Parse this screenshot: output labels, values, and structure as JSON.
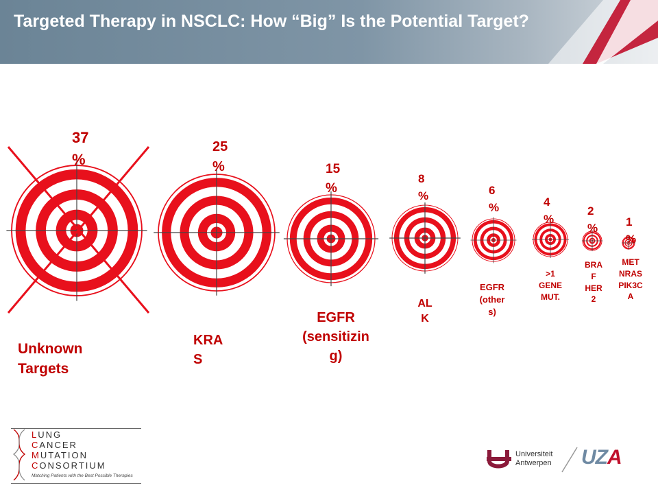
{
  "header": {
    "title": "Targeted Therapy in NSCLC: How “Big” Is the Potential Target?"
  },
  "colors": {
    "target_red": "#e8101c",
    "label_red": "#c00000",
    "header_blue": "#6b8496",
    "crimson": "#c0102b"
  },
  "targets": [
    {
      "pct": "37\n%",
      "label": "Unknown\nTargets",
      "crossed": true
    },
    {
      "pct": "25\n%",
      "label": "KRA\nS",
      "crossed": false
    },
    {
      "pct": "15\n%",
      "label": "EGFR\n(sensitizin\ng)",
      "crossed": false
    },
    {
      "pct": "8\n%",
      "label": "AL\nK",
      "crossed": false
    },
    {
      "pct": "6\n%",
      "label": "EGFR\n(other\ns)",
      "crossed": false
    },
    {
      "pct": "4\n%",
      "label": ">1\nGENE\nMUT.",
      "crossed": false
    },
    {
      "pct": "2\n%",
      "label": "BRA\nF\nHER\n2",
      "crossed": false
    },
    {
      "pct": "1\n%",
      "label": "MET\nNRAS\nPIK3C\nA",
      "crossed": false
    }
  ],
  "logos": {
    "lcmc_lines": [
      "LUNG",
      "CANCER",
      "MUTATION",
      "CONSORTIUM"
    ],
    "lcmc_tagline": "Matching Patients with the Best Possible Therapies",
    "ua_line1": "Universiteit",
    "ua_line2": "Antwerpen",
    "uza_main": "UZ",
    "uza_accent": "A"
  }
}
